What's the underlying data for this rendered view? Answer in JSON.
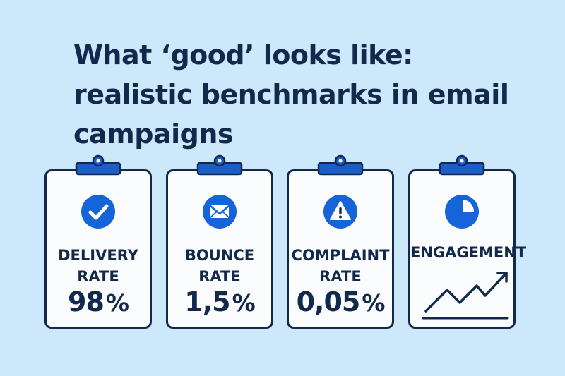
{
  "title": {
    "line1": "What ‘good’ looks like:",
    "line2": "realistic benchmarks in email",
    "line3": "campaigns"
  },
  "colors": {
    "background": "#cde7fb",
    "navy": "#13294b",
    "accent_blue": "#1565d8",
    "card_bg": "#fbfcfe"
  },
  "cards": [
    {
      "icon": "checkmark-icon",
      "label_line1": "DELIVERY",
      "label_line2": "RATE",
      "value": "98",
      "unit": "%"
    },
    {
      "icon": "envelope-icon",
      "label_line1": "BOUNCE",
      "label_line2": "RATE",
      "value": "1,5",
      "unit": "%"
    },
    {
      "icon": "warning-icon",
      "label_line1": "COMPLAINT",
      "label_line2": "RATE",
      "value": "0,05",
      "unit": "%"
    },
    {
      "icon": "pie-chart-icon",
      "label_line1": "ENGAGEMENT",
      "trend_icon": "rising-trend-icon"
    }
  ]
}
